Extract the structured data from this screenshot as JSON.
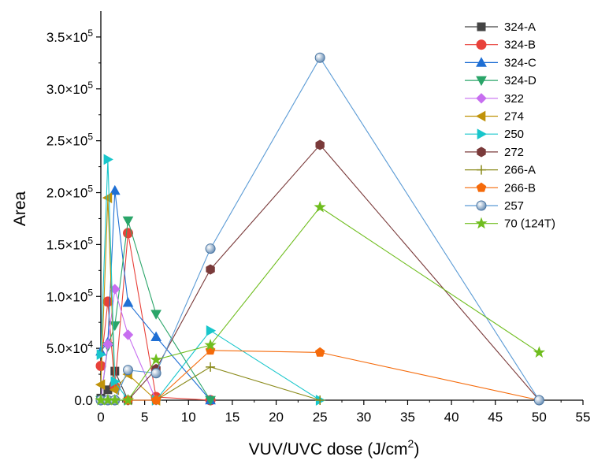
{
  "chart_data": {
    "type": "scatter",
    "xlabel": "VUV/UVC dose (J/cm2)",
    "ylabel": "Area",
    "xlim": [
      0,
      55
    ],
    "ylim": [
      0,
      375000
    ],
    "x_ticks": [
      0,
      5,
      10,
      15,
      20,
      25,
      30,
      35,
      40,
      45,
      50,
      55
    ],
    "x_tick_labels": [
      "0",
      "5",
      "10",
      "15",
      "20",
      "25",
      "30",
      "35",
      "40",
      "45",
      "50",
      "55"
    ],
    "y_ticks": [
      0,
      50000,
      100000,
      150000,
      200000,
      250000,
      300000,
      350000
    ],
    "y_tick_labels": [
      "0.0",
      "5.0×10^4",
      "1.0×10^5",
      "1.5×10^5",
      "2.0×10^5",
      "2.5×10^5",
      "3.0×10^5",
      "3.5×10^5"
    ],
    "legend_position": "top-right",
    "grid": false,
    "series": [
      {
        "name": "324-A",
        "color": "#444444",
        "marker": "square",
        "x": [
          0,
          0.8,
          1.6,
          3.1
        ],
        "y": [
          2000,
          10000,
          28000,
          0
        ]
      },
      {
        "name": "324-B",
        "color": "#e8413a",
        "marker": "circle",
        "x": [
          0,
          0.8,
          1.6,
          3.1,
          6.3,
          12.5
        ],
        "y": [
          33000,
          95000,
          13000,
          161000,
          3000,
          0
        ]
      },
      {
        "name": "324-C",
        "color": "#1f6fd4",
        "marker": "triangle-up",
        "x": [
          0,
          0.8,
          1.6,
          3.1,
          6.3,
          12.5
        ],
        "y": [
          47000,
          56000,
          202000,
          94000,
          61000,
          0
        ]
      },
      {
        "name": "324-D",
        "color": "#2aa569",
        "marker": "triangle-down",
        "x": [
          0,
          0.8,
          1.6,
          3.1,
          6.3,
          12.5
        ],
        "y": [
          0,
          52000,
          72000,
          173000,
          83000,
          0
        ]
      },
      {
        "name": "322",
        "color": "#c76ef0",
        "marker": "diamond",
        "x": [
          0,
          0.8,
          1.6,
          3.1,
          6.3
        ],
        "y": [
          0,
          54000,
          107000,
          63000,
          0
        ]
      },
      {
        "name": "274",
        "color": "#c0930b",
        "marker": "triangle-left",
        "x": [
          0,
          0.8,
          1.6,
          3.1,
          6.3
        ],
        "y": [
          15000,
          195000,
          10000,
          25000,
          0
        ]
      },
      {
        "name": "250",
        "color": "#18c6cb",
        "marker": "triangle-right",
        "x": [
          0,
          0.8,
          1.6,
          3.1,
          6.3,
          12.5,
          25
        ],
        "y": [
          44000,
          232000,
          18000,
          0,
          0,
          67000,
          0
        ]
      },
      {
        "name": "272",
        "color": "#7a3a3a",
        "marker": "hexagon",
        "x": [
          0,
          0.8,
          1.6,
          3.1,
          6.3,
          12.5,
          25,
          50
        ],
        "y": [
          0,
          0,
          0,
          0,
          30000,
          126000,
          246000,
          0
        ]
      },
      {
        "name": "266-A",
        "color": "#8a8a1a",
        "marker": "plus",
        "x": [
          0,
          0.8,
          1.6,
          3.1,
          6.3,
          12.5,
          25
        ],
        "y": [
          0,
          0,
          0,
          0,
          0,
          32000,
          0
        ]
      },
      {
        "name": "266-B",
        "color": "#f56a0a",
        "marker": "pentagon",
        "x": [
          0,
          0.8,
          1.6,
          3.1,
          6.3,
          12.5,
          25,
          50
        ],
        "y": [
          0,
          0,
          0,
          0,
          0,
          48000,
          46000,
          0
        ]
      },
      {
        "name": "257",
        "color": "#5b9bd5",
        "marker": "sphere",
        "x": [
          0,
          0.8,
          1.6,
          3.1,
          6.3,
          12.5,
          25,
          50
        ],
        "y": [
          0,
          0,
          0,
          29000,
          26000,
          146000,
          330000,
          0
        ]
      },
      {
        "name": "70  (124T)",
        "color": "#6fbd1e",
        "marker": "star",
        "x": [
          0,
          0.8,
          1.6,
          3.1,
          6.3,
          12.5,
          25,
          50
        ],
        "y": [
          0,
          0,
          0,
          0,
          39000,
          53000,
          186000,
          46000
        ]
      }
    ]
  }
}
